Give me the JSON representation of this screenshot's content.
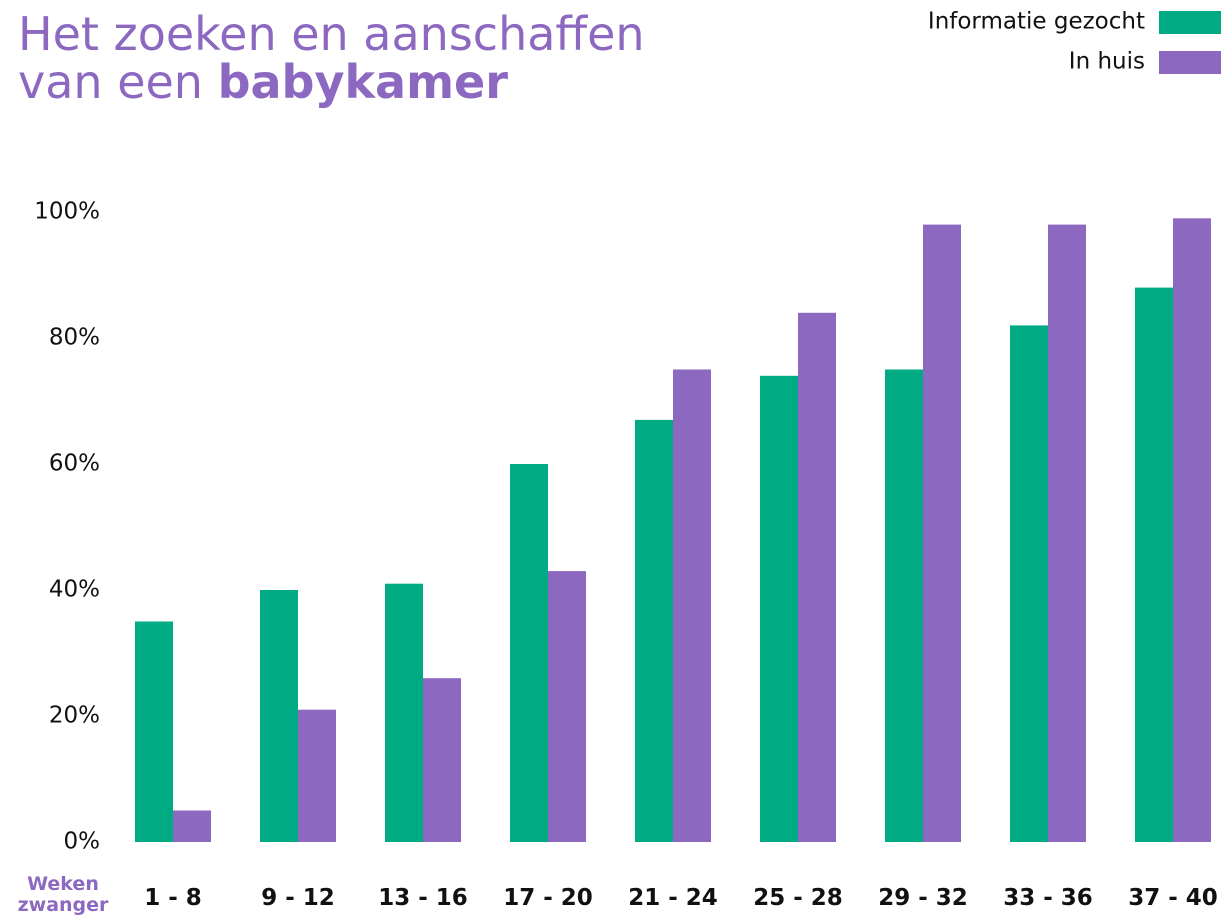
{
  "chart_data": {
    "type": "bar",
    "title": [
      "Het zoeken en aanschaffen",
      "van een",
      "babykamer"
    ],
    "x_label": [
      "Weken",
      "zwanger"
    ],
    "categories": [
      "1 - 8",
      "9 - 12",
      "13 - 16",
      "17 - 20",
      "21 - 24",
      "25 - 28",
      "29 - 32",
      "33 - 36",
      "37 - 40"
    ],
    "series": [
      {
        "name": "Informatie gezocht",
        "color": "#00ab84",
        "values": [
          35,
          40,
          41,
          60,
          67,
          74,
          75,
          82,
          88
        ]
      },
      {
        "name": "In huis",
        "color": "#8c68c0",
        "values": [
          5,
          21,
          26,
          43,
          75,
          84,
          98,
          98,
          99
        ]
      }
    ],
    "ylim": [
      0,
      100
    ],
    "yticks": [
      {
        "value": 0,
        "label": "0%"
      },
      {
        "value": 20,
        "label": "20%"
      },
      {
        "value": 40,
        "label": "40%"
      },
      {
        "value": 60,
        "label": "60%"
      },
      {
        "value": 80,
        "label": "80%"
      },
      {
        "value": 100,
        "label": "100%"
      }
    ],
    "grid": false,
    "legend": "top-right"
  }
}
